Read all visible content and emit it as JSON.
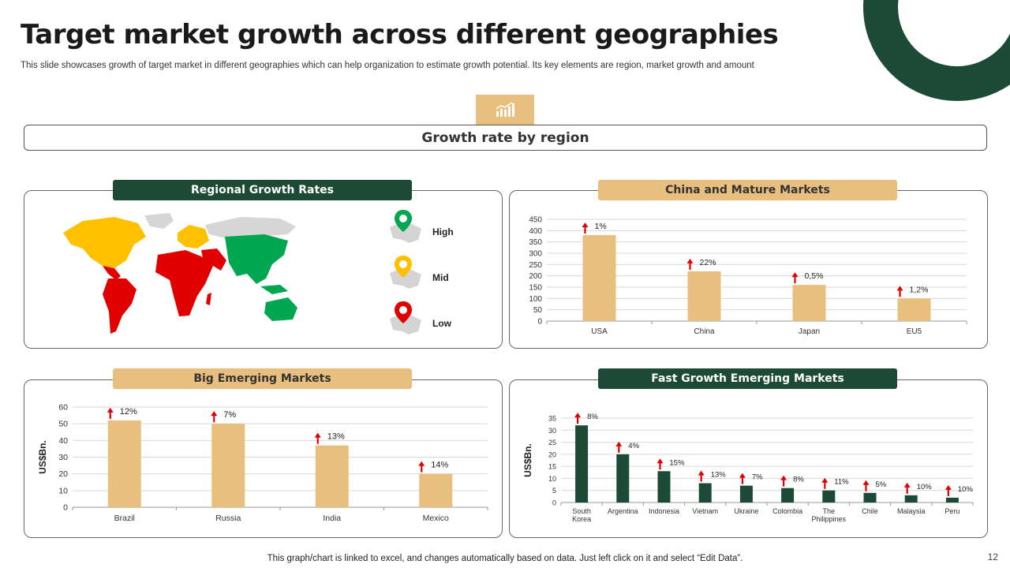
{
  "page": {
    "title": "Target market growth across different geographies",
    "subtitle": "This slide showcases growth of target market in different geographies which can help organization to estimate growth potential. Its key elements are region, market growth and amount",
    "banner": "Growth rate by region",
    "footer": "This graph/chart is linked to excel,  and changes automatically based on data. Just left click on it and select “Edit Data”.",
    "page_number": "12"
  },
  "colors": {
    "dark_green": "#1d4a37",
    "tan": "#e8bf7f",
    "high": "#00a650",
    "mid": "#ffc000",
    "low": "#e00000",
    "arrow": "#e00000"
  },
  "map_panel": {
    "title": "Regional Growth Rates",
    "legend": [
      {
        "label": "High",
        "color": "#00a650",
        "icon": "pin-usa-icon"
      },
      {
        "label": "Mid",
        "color": "#ffc000",
        "icon": "pin-usa-icon"
      },
      {
        "label": "Low",
        "color": "#e00000",
        "icon": "pin-usa-icon"
      }
    ]
  },
  "chart_data": [
    {
      "id": "china-mature",
      "title": "China and Mature Markets",
      "type": "bar",
      "categories": [
        "USA",
        "China",
        "Japan",
        "EU5"
      ],
      "values": [
        380,
        220,
        160,
        100
      ],
      "annotations": [
        "1%",
        "22%",
        "0,5%",
        "1,2%"
      ],
      "ylim": [
        0,
        450
      ],
      "yticks": [
        0,
        50,
        100,
        150,
        200,
        250,
        300,
        350,
        400,
        450
      ],
      "ylabel": "",
      "bar_color": "#e8bf7f",
      "grid": true
    },
    {
      "id": "big-emerging",
      "title": "Big Emerging Markets",
      "type": "bar",
      "categories": [
        "Brazil",
        "Russia",
        "India",
        "Mexico"
      ],
      "values": [
        52,
        50,
        37,
        20
      ],
      "annotations": [
        "12%",
        "7%",
        "13%",
        "14%"
      ],
      "ylim": [
        0,
        60
      ],
      "yticks": [
        0,
        10,
        20,
        30,
        40,
        50,
        60
      ],
      "ylabel": "US$Bn.",
      "bar_color": "#e8bf7f",
      "grid": true
    },
    {
      "id": "fast-growth",
      "title": "Fast Growth Emerging Markets",
      "type": "bar",
      "categories": [
        "South Korea",
        "Argentina",
        "Indonesia",
        "Vietnam",
        "Ukraine",
        "Colombia",
        "The Philippines",
        "Chile",
        "Malaysia",
        "Peru"
      ],
      "values": [
        32,
        20,
        13,
        8,
        7,
        6,
        5,
        4,
        3,
        2
      ],
      "annotations": [
        "8%",
        "4%",
        "15%",
        "13%",
        "7%",
        "8%",
        "11%",
        "5%",
        "10%",
        "10%"
      ],
      "ylim": [
        0,
        35
      ],
      "yticks": [
        0,
        5,
        10,
        15,
        20,
        25,
        30,
        35
      ],
      "ylabel": "US$Bn.",
      "bar_color": "#1d4a37",
      "grid": true
    }
  ]
}
